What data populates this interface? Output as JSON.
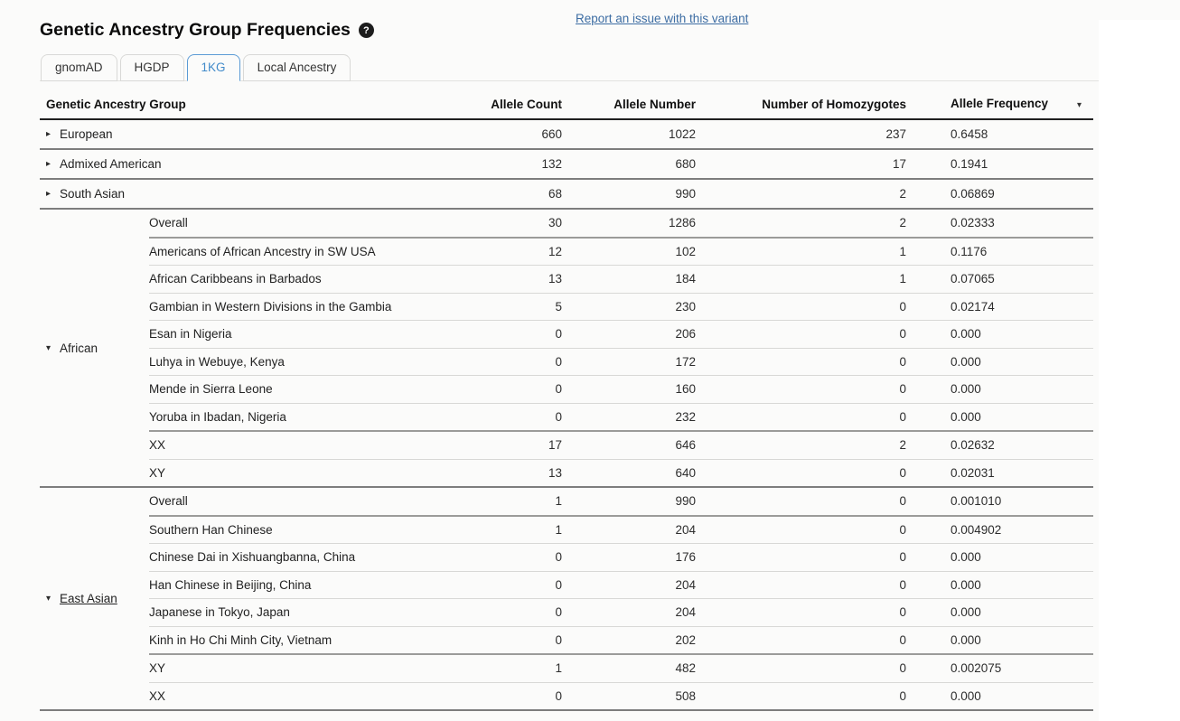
{
  "page": {
    "report_link": "Report an issue with this variant"
  },
  "header": {
    "title": "Genetic Ancestry Group Frequencies"
  },
  "icons": {
    "help": "?",
    "collapsed_caret": "▸",
    "expanded_caret": "▾",
    "sort_caret": "▾"
  },
  "tabs": [
    {
      "label": "gnomAD",
      "active": false
    },
    {
      "label": "HGDP",
      "active": false
    },
    {
      "label": "1KG",
      "active": true
    },
    {
      "label": "Local Ancestry",
      "active": false
    }
  ],
  "table": {
    "columns": [
      "Genetic Ancestry Group",
      "Allele Count",
      "Allele Number",
      "Number of Homozygotes",
      "Allele Frequency"
    ],
    "sorted_column": "Allele Frequency",
    "groups": [
      {
        "name": "European",
        "expanded": false,
        "allele_count": "660",
        "allele_number": "1022",
        "homozygotes": "237",
        "allele_frequency": "0.6458"
      },
      {
        "name": "Admixed American",
        "expanded": false,
        "allele_count": "132",
        "allele_number": "680",
        "homozygotes": "17",
        "allele_frequency": "0.1941"
      },
      {
        "name": "South Asian",
        "expanded": false,
        "allele_count": "68",
        "allele_number": "990",
        "homozygotes": "2",
        "allele_frequency": "0.06869"
      },
      {
        "name": "African",
        "expanded": true,
        "underlined": false,
        "rows": [
          {
            "label": "Overall",
            "allele_count": "30",
            "allele_number": "1286",
            "homozygotes": "2",
            "allele_frequency": "0.02333",
            "section_end": true
          },
          {
            "label": "Americans of African Ancestry in SW USA",
            "allele_count": "12",
            "allele_number": "102",
            "homozygotes": "1",
            "allele_frequency": "0.1176"
          },
          {
            "label": "African Caribbeans in Barbados",
            "allele_count": "13",
            "allele_number": "184",
            "homozygotes": "1",
            "allele_frequency": "0.07065"
          },
          {
            "label": "Gambian in Western Divisions in the Gambia",
            "allele_count": "5",
            "allele_number": "230",
            "homozygotes": "0",
            "allele_frequency": "0.02174"
          },
          {
            "label": "Esan in Nigeria",
            "allele_count": "0",
            "allele_number": "206",
            "homozygotes": "0",
            "allele_frequency": "0.000"
          },
          {
            "label": "Luhya in Webuye, Kenya",
            "allele_count": "0",
            "allele_number": "172",
            "homozygotes": "0",
            "allele_frequency": "0.000"
          },
          {
            "label": "Mende in Sierra Leone",
            "allele_count": "0",
            "allele_number": "160",
            "homozygotes": "0",
            "allele_frequency": "0.000"
          },
          {
            "label": "Yoruba in Ibadan, Nigeria",
            "allele_count": "0",
            "allele_number": "232",
            "homozygotes": "0",
            "allele_frequency": "0.000",
            "section_end": true
          },
          {
            "label": "XX",
            "allele_count": "17",
            "allele_number": "646",
            "homozygotes": "2",
            "allele_frequency": "0.02632"
          },
          {
            "label": "XY",
            "allele_count": "13",
            "allele_number": "640",
            "homozygotes": "0",
            "allele_frequency": "0.02031"
          }
        ]
      },
      {
        "name": "East Asian",
        "expanded": true,
        "underlined": true,
        "rows": [
          {
            "label": "Overall",
            "allele_count": "1",
            "allele_number": "990",
            "homozygotes": "0",
            "allele_frequency": "0.001010",
            "section_end": true
          },
          {
            "label": "Southern Han Chinese",
            "allele_count": "1",
            "allele_number": "204",
            "homozygotes": "0",
            "allele_frequency": "0.004902"
          },
          {
            "label": "Chinese Dai in Xishuangbanna, China",
            "allele_count": "0",
            "allele_number": "176",
            "homozygotes": "0",
            "allele_frequency": "0.000"
          },
          {
            "label": "Han Chinese in Beijing, China",
            "allele_count": "0",
            "allele_number": "204",
            "homozygotes": "0",
            "allele_frequency": "0.000"
          },
          {
            "label": "Japanese in Tokyo, Japan",
            "allele_count": "0",
            "allele_number": "204",
            "homozygotes": "0",
            "allele_frequency": "0.000"
          },
          {
            "label": "Kinh in Ho Chi Minh City, Vietnam",
            "allele_count": "0",
            "allele_number": "202",
            "homozygotes": "0",
            "allele_frequency": "0.000",
            "section_end": true
          },
          {
            "label": "XY",
            "allele_count": "1",
            "allele_number": "482",
            "homozygotes": "0",
            "allele_frequency": "0.002075"
          },
          {
            "label": "XX",
            "allele_count": "0",
            "allele_number": "508",
            "homozygotes": "0",
            "allele_frequency": "0.000"
          }
        ]
      }
    ]
  },
  "colors": {
    "accent": "#428bca",
    "active_tab_border": "#5b9bd5",
    "link": "#3d6da3",
    "header_rule": "#1f1f1f",
    "group_rule": "#7d7d7d",
    "subrow_rule": "#d8d8d6"
  }
}
